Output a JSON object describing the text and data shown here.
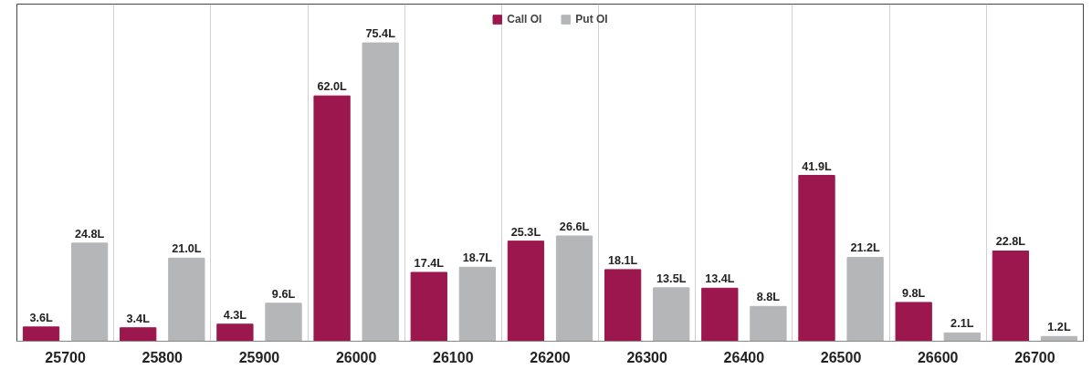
{
  "chart_data": {
    "type": "bar",
    "categories": [
      "25700",
      "25800",
      "25900",
      "26000",
      "26100",
      "26200",
      "26300",
      "26400",
      "26500",
      "26600",
      "26700"
    ],
    "series": [
      {
        "name": "Call OI",
        "color": "#9b174d",
        "values": [
          3.6,
          3.4,
          4.3,
          62.0,
          17.4,
          25.3,
          18.1,
          13.4,
          41.9,
          9.8,
          22.8
        ],
        "value_labels": [
          "3.6L",
          "3.4L",
          "4.3L",
          "62.0L",
          "17.4L",
          "25.3L",
          "18.1L",
          "13.4L",
          "41.9L",
          "9.8L",
          "22.8L"
        ]
      },
      {
        "name": "Put OI",
        "color": "#b4b6b8",
        "values": [
          24.8,
          21.0,
          9.6,
          75.4,
          18.7,
          26.6,
          13.5,
          8.8,
          21.2,
          2.1,
          1.2
        ],
        "value_labels": [
          "24.8L",
          "21.0L",
          "9.6L",
          "75.4L",
          "18.7L",
          "26.6L",
          "13.5L",
          "8.8L",
          "21.2L",
          "2.1L",
          "1.2L"
        ]
      }
    ],
    "legend": "top",
    "grid": "x",
    "tick_labels": "x"
  }
}
